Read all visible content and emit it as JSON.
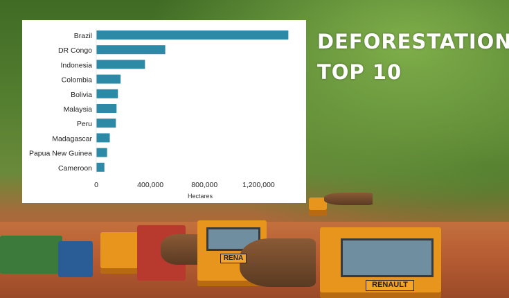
{
  "headline": {
    "line1": "DEFORESTATION",
    "line2": "TOP 10"
  },
  "truck_markings": {
    "front": "RENAULT",
    "side": "RENA"
  },
  "colors": {
    "bar": "#2d8aa6",
    "headline_text": "#ffffff"
  },
  "chart_data": {
    "type": "bar",
    "orientation": "horizontal",
    "categories": [
      "Brazil",
      "DR Congo",
      "Indonesia",
      "Colombia",
      "Bolivia",
      "Malaysia",
      "Peru",
      "Madagascar",
      "Papua New Guinea",
      "Cameroon"
    ],
    "values": [
      1420000,
      510000,
      360000,
      180000,
      160000,
      150000,
      145000,
      100000,
      80000,
      60000
    ],
    "xlabel": "Hectares",
    "ylabel": "",
    "xlim": [
      0,
      1500000
    ],
    "xticks": [
      0,
      400000,
      800000,
      1200000
    ],
    "xtick_labels": [
      "0",
      "400,000",
      "800,000",
      "1,200,000"
    ],
    "grid": false,
    "legend": "none"
  }
}
